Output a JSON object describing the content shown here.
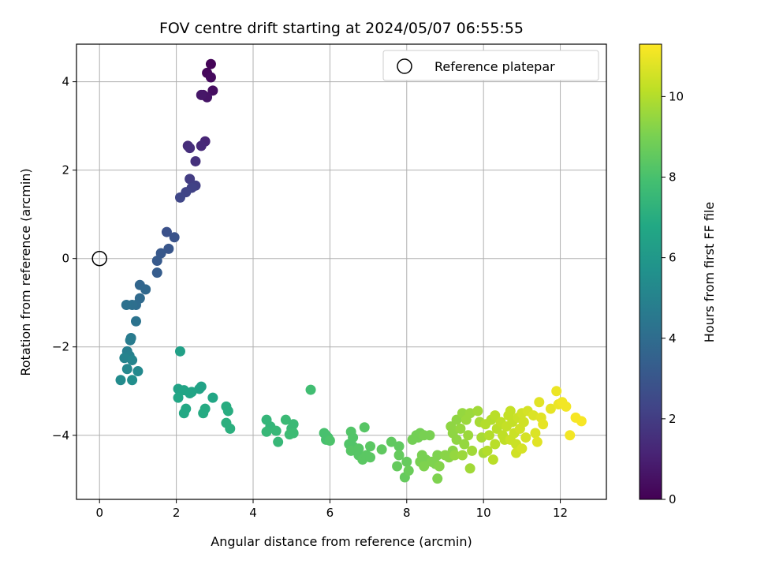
{
  "chart_data": {
    "type": "scatter",
    "title": "FOV centre drift starting at 2024/05/07 06:55:55",
    "xlabel": "Angular distance from reference (arcmin)",
    "ylabel": "Rotation from reference (arcmin)",
    "xlim": [
      -0.6,
      13.2
    ],
    "ylim": [
      -5.45,
      4.85
    ],
    "xticks": [
      0,
      2,
      4,
      6,
      8,
      10,
      12
    ],
    "yticks": [
      -4,
      -2,
      0,
      2,
      4
    ],
    "grid": true,
    "legend": {
      "placement": "top-right",
      "entries": [
        "Reference platepar"
      ]
    },
    "reference_point": {
      "x": 0,
      "y": 0
    },
    "colorbar": {
      "label": "Hours from first FF file",
      "range": [
        0,
        11.3
      ],
      "ticks": [
        0,
        2,
        4,
        6,
        8,
        10
      ],
      "colormap": "viridis"
    },
    "points": [
      [
        2.9,
        4.4,
        0.1
      ],
      [
        2.8,
        4.2,
        0.2
      ],
      [
        2.9,
        4.1,
        0.3
      ],
      [
        2.95,
        3.8,
        0.4
      ],
      [
        2.7,
        3.7,
        0.5
      ],
      [
        2.8,
        3.65,
        0.6
      ],
      [
        2.65,
        3.7,
        0.7
      ],
      [
        2.75,
        2.65,
        1.2
      ],
      [
        2.65,
        2.55,
        1.3
      ],
      [
        2.3,
        2.55,
        1.4
      ],
      [
        2.35,
        2.5,
        1.5
      ],
      [
        2.5,
        2.2,
        1.6
      ],
      [
        2.35,
        1.8,
        2.0
      ],
      [
        2.5,
        1.65,
        2.1
      ],
      [
        2.4,
        1.6,
        2.2
      ],
      [
        2.25,
        1.5,
        2.3
      ],
      [
        2.1,
        1.38,
        2.4
      ],
      [
        1.75,
        0.6,
        2.8
      ],
      [
        1.95,
        0.48,
        2.9
      ],
      [
        1.8,
        0.22,
        3.0
      ],
      [
        1.6,
        0.12,
        3.1
      ],
      [
        1.5,
        -0.05,
        3.2
      ],
      [
        1.5,
        -0.32,
        3.3
      ],
      [
        1.05,
        -0.6,
        3.7
      ],
      [
        1.2,
        -0.7,
        3.8
      ],
      [
        1.05,
        -0.9,
        3.9
      ],
      [
        0.95,
        -1.05,
        4.0
      ],
      [
        0.85,
        -1.05,
        4.1
      ],
      [
        0.7,
        -1.05,
        4.2
      ],
      [
        0.95,
        -1.42,
        4.3
      ],
      [
        0.82,
        -1.8,
        4.6
      ],
      [
        0.8,
        -1.85,
        4.7
      ],
      [
        0.72,
        -2.1,
        4.8
      ],
      [
        0.78,
        -2.2,
        4.9
      ],
      [
        0.65,
        -2.25,
        5.0
      ],
      [
        0.85,
        -2.3,
        5.1
      ],
      [
        0.72,
        -2.5,
        5.2
      ],
      [
        1.0,
        -2.55,
        5.3
      ],
      [
        0.55,
        -2.75,
        5.4
      ],
      [
        0.85,
        -2.75,
        5.5
      ],
      [
        2.1,
        -2.1,
        6.4
      ],
      [
        2.65,
        -2.9,
        6.5
      ],
      [
        2.6,
        -2.95,
        6.5
      ],
      [
        2.05,
        -2.95,
        6.5
      ],
      [
        2.2,
        -2.98,
        6.6
      ],
      [
        2.4,
        -3.02,
        6.6
      ],
      [
        2.35,
        -3.05,
        6.6
      ],
      [
        2.05,
        -3.15,
        6.7
      ],
      [
        2.95,
        -3.15,
        6.7
      ],
      [
        2.25,
        -3.4,
        6.8
      ],
      [
        2.2,
        -3.5,
        6.8
      ],
      [
        2.75,
        -3.4,
        6.9
      ],
      [
        2.7,
        -3.5,
        6.9
      ],
      [
        3.3,
        -3.35,
        7.0
      ],
      [
        3.35,
        -3.45,
        7.0
      ],
      [
        3.3,
        -3.72,
        7.1
      ],
      [
        3.4,
        -3.85,
        7.1
      ],
      [
        4.35,
        -3.65,
        7.4
      ],
      [
        4.45,
        -3.8,
        7.4
      ],
      [
        4.35,
        -3.92,
        7.5
      ],
      [
        4.6,
        -3.9,
        7.5
      ],
      [
        4.65,
        -4.15,
        7.5
      ],
      [
        4.85,
        -3.65,
        7.6
      ],
      [
        5.05,
        -3.75,
        7.6
      ],
      [
        5.0,
        -3.85,
        7.6
      ],
      [
        5.05,
        -3.95,
        7.7
      ],
      [
        4.95,
        -3.98,
        7.7
      ],
      [
        5.5,
        -2.97,
        7.8
      ],
      [
        5.85,
        -3.95,
        8.0
      ],
      [
        5.9,
        -4.0,
        8.0
      ],
      [
        5.95,
        -4.05,
        8.0
      ],
      [
        5.9,
        -4.1,
        8.0
      ],
      [
        6.0,
        -4.12,
        8.1
      ],
      [
        6.55,
        -3.92,
        8.2
      ],
      [
        6.6,
        -4.05,
        8.2
      ],
      [
        6.5,
        -4.2,
        8.2
      ],
      [
        6.6,
        -4.25,
        8.2
      ],
      [
        6.55,
        -4.35,
        8.3
      ],
      [
        6.75,
        -4.3,
        8.3
      ],
      [
        6.9,
        -3.82,
        8.3
      ],
      [
        6.75,
        -4.45,
        8.3
      ],
      [
        6.85,
        -4.55,
        8.4
      ],
      [
        6.95,
        -4.45,
        8.4
      ],
      [
        7.05,
        -4.25,
        8.4
      ],
      [
        7.05,
        -4.5,
        8.4
      ],
      [
        7.35,
        -4.32,
        8.5
      ],
      [
        7.6,
        -4.15,
        8.5
      ],
      [
        7.8,
        -4.25,
        8.5
      ],
      [
        7.8,
        -4.45,
        8.6
      ],
      [
        7.75,
        -4.7,
        8.6
      ],
      [
        8.0,
        -4.6,
        8.6
      ],
      [
        7.95,
        -4.95,
        8.6
      ],
      [
        8.05,
        -4.8,
        8.7
      ],
      [
        8.25,
        -4.0,
        8.9
      ],
      [
        8.3,
        -4.05,
        8.9
      ],
      [
        8.35,
        -3.95,
        8.9
      ],
      [
        8.15,
        -4.1,
        8.9
      ],
      [
        8.45,
        -4.0,
        9.0
      ],
      [
        8.6,
        -4.0,
        9.0
      ],
      [
        8.4,
        -4.45,
        9.0
      ],
      [
        8.35,
        -4.6,
        9.0
      ],
      [
        8.5,
        -4.55,
        9.0
      ],
      [
        8.45,
        -4.7,
        9.1
      ],
      [
        8.65,
        -4.6,
        9.1
      ],
      [
        8.8,
        -4.45,
        9.1
      ],
      [
        8.75,
        -4.65,
        9.1
      ],
      [
        8.8,
        -4.98,
        9.1
      ],
      [
        8.85,
        -4.7,
        9.2
      ],
      [
        9.0,
        -4.45,
        9.3
      ],
      [
        9.1,
        -4.5,
        9.3
      ],
      [
        9.2,
        -4.35,
        9.3
      ],
      [
        9.2,
        -3.95,
        9.4
      ],
      [
        9.15,
        -3.8,
        9.4
      ],
      [
        9.3,
        -3.65,
        9.4
      ],
      [
        9.3,
        -4.1,
        9.4
      ],
      [
        9.25,
        -4.45,
        9.5
      ],
      [
        9.45,
        -3.5,
        9.5
      ],
      [
        9.4,
        -3.85,
        9.5
      ],
      [
        9.5,
        -4.2,
        9.5
      ],
      [
        9.45,
        -4.45,
        9.6
      ],
      [
        9.55,
        -3.65,
        9.6
      ],
      [
        9.65,
        -3.5,
        9.6
      ],
      [
        9.6,
        -4.0,
        9.6
      ],
      [
        9.7,
        -4.35,
        9.7
      ],
      [
        9.65,
        -4.75,
        9.7
      ],
      [
        9.85,
        -3.45,
        9.7
      ],
      [
        9.9,
        -3.7,
        9.8
      ],
      [
        9.95,
        -4.05,
        9.8
      ],
      [
        10.0,
        -4.4,
        9.8
      ],
      [
        10.05,
        -3.75,
        10.0
      ],
      [
        10.1,
        -4.35,
        10.0
      ],
      [
        10.2,
        -3.65,
        10.0
      ],
      [
        10.15,
        -4.0,
        10.0
      ],
      [
        10.25,
        -4.55,
        10.1
      ],
      [
        10.3,
        -3.55,
        10.1
      ],
      [
        10.35,
        -3.85,
        10.1
      ],
      [
        10.3,
        -4.2,
        10.1
      ],
      [
        10.45,
        -3.7,
        10.2
      ],
      [
        10.5,
        -4.0,
        10.2
      ],
      [
        10.55,
        -4.1,
        10.2
      ],
      [
        10.6,
        -3.8,
        10.3
      ],
      [
        10.65,
        -3.55,
        10.3
      ],
      [
        10.7,
        -3.45,
        10.3
      ],
      [
        10.75,
        -3.7,
        10.3
      ],
      [
        10.7,
        -4.1,
        10.4
      ],
      [
        10.8,
        -3.95,
        10.4
      ],
      [
        10.85,
        -4.2,
        10.4
      ],
      [
        10.9,
        -3.6,
        10.4
      ],
      [
        10.95,
        -3.85,
        10.5
      ],
      [
        10.85,
        -4.4,
        10.5
      ],
      [
        11.0,
        -3.5,
        10.5
      ],
      [
        11.05,
        -3.7,
        10.5
      ],
      [
        11.1,
        -4.05,
        10.6
      ],
      [
        11.0,
        -4.3,
        10.6
      ],
      [
        11.15,
        -3.45,
        10.6
      ],
      [
        11.3,
        -3.55,
        10.7
      ],
      [
        11.35,
        -3.95,
        10.7
      ],
      [
        11.4,
        -4.15,
        10.8
      ],
      [
        11.45,
        -3.25,
        10.8
      ],
      [
        11.5,
        -3.6,
        10.8
      ],
      [
        11.55,
        -3.75,
        10.9
      ],
      [
        11.75,
        -3.4,
        10.9
      ],
      [
        11.9,
        -3.0,
        11.0
      ],
      [
        11.95,
        -3.3,
        11.0
      ],
      [
        12.05,
        -3.25,
        11.1
      ],
      [
        12.15,
        -3.35,
        11.1
      ],
      [
        12.25,
        -4.0,
        11.1
      ],
      [
        12.4,
        -3.6,
        11.2
      ],
      [
        12.55,
        -3.68,
        11.2
      ]
    ]
  }
}
